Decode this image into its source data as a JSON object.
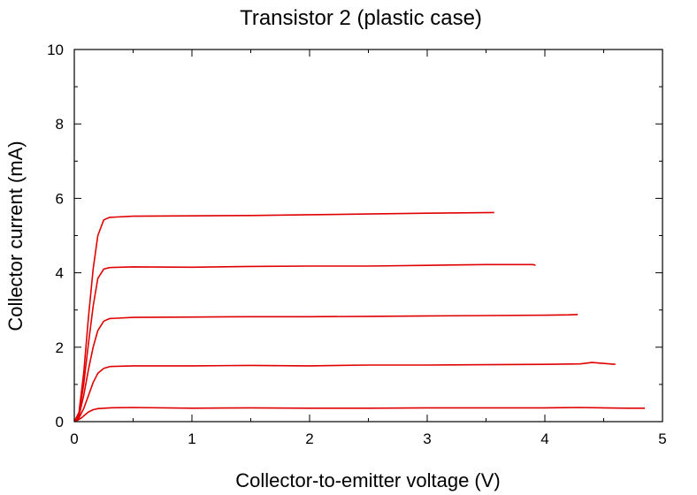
{
  "chart_data": {
    "type": "line",
    "title": "Transistor 2 (plastic case)",
    "xlabel": "Collector-to-emitter voltage (V)",
    "ylabel": "Collector current (mA)",
    "xlim": [
      0,
      5
    ],
    "ylim": [
      0,
      10
    ],
    "xticks": [
      0,
      1,
      2,
      3,
      4,
      5
    ],
    "yticks": [
      0,
      2,
      4,
      6,
      8,
      10
    ],
    "grid": false,
    "legend": "none",
    "color": "#e00000",
    "series": [
      {
        "x": [
          0,
          0.03,
          0.06,
          0.09,
          0.12,
          0.16,
          0.2,
          0.3,
          0.5,
          1,
          1.5,
          2,
          2.5,
          3,
          3.5,
          4,
          4.3,
          4.5,
          4.7,
          4.85
        ],
        "y": [
          0,
          0.04,
          0.1,
          0.18,
          0.26,
          0.32,
          0.35,
          0.37,
          0.38,
          0.36,
          0.37,
          0.36,
          0.36,
          0.37,
          0.37,
          0.37,
          0.38,
          0.37,
          0.36,
          0.36
        ]
      },
      {
        "x": [
          0,
          0.04,
          0.08,
          0.12,
          0.16,
          0.2,
          0.25,
          0.3,
          0.5,
          1,
          1.5,
          2,
          2.5,
          3,
          3.5,
          4,
          4.3,
          4.4,
          4.6
        ],
        "y": [
          0,
          0.1,
          0.35,
          0.7,
          1.05,
          1.3,
          1.43,
          1.48,
          1.5,
          1.5,
          1.51,
          1.5,
          1.52,
          1.52,
          1.53,
          1.54,
          1.55,
          1.59,
          1.54
        ]
      },
      {
        "x": [
          0,
          0.04,
          0.08,
          0.12,
          0.16,
          0.2,
          0.25,
          0.3,
          0.5,
          1,
          1.5,
          2,
          2.5,
          3,
          3.5,
          4,
          4.2,
          4.28
        ],
        "y": [
          0,
          0.15,
          0.7,
          1.4,
          2.0,
          2.45,
          2.7,
          2.77,
          2.8,
          2.81,
          2.82,
          2.82,
          2.83,
          2.84,
          2.85,
          2.86,
          2.87,
          2.88
        ]
      },
      {
        "x": [
          0,
          0.04,
          0.08,
          0.12,
          0.16,
          0.2,
          0.25,
          0.3,
          0.5,
          1,
          1.5,
          2,
          2.5,
          3,
          3.5,
          3.9,
          3.92
        ],
        "y": [
          0,
          0.2,
          1.0,
          2.1,
          3.1,
          3.85,
          4.1,
          4.14,
          4.16,
          4.15,
          4.17,
          4.18,
          4.18,
          4.2,
          4.22,
          4.22,
          4.2
        ]
      },
      {
        "x": [
          0,
          0.04,
          0.08,
          0.12,
          0.16,
          0.2,
          0.25,
          0.3,
          0.5,
          1,
          1.5,
          2,
          2.5,
          3,
          3.3,
          3.57
        ],
        "y": [
          0,
          0.25,
          1.3,
          2.8,
          4.1,
          5.0,
          5.42,
          5.49,
          5.52,
          5.53,
          5.54,
          5.56,
          5.58,
          5.6,
          5.61,
          5.62
        ]
      }
    ]
  }
}
